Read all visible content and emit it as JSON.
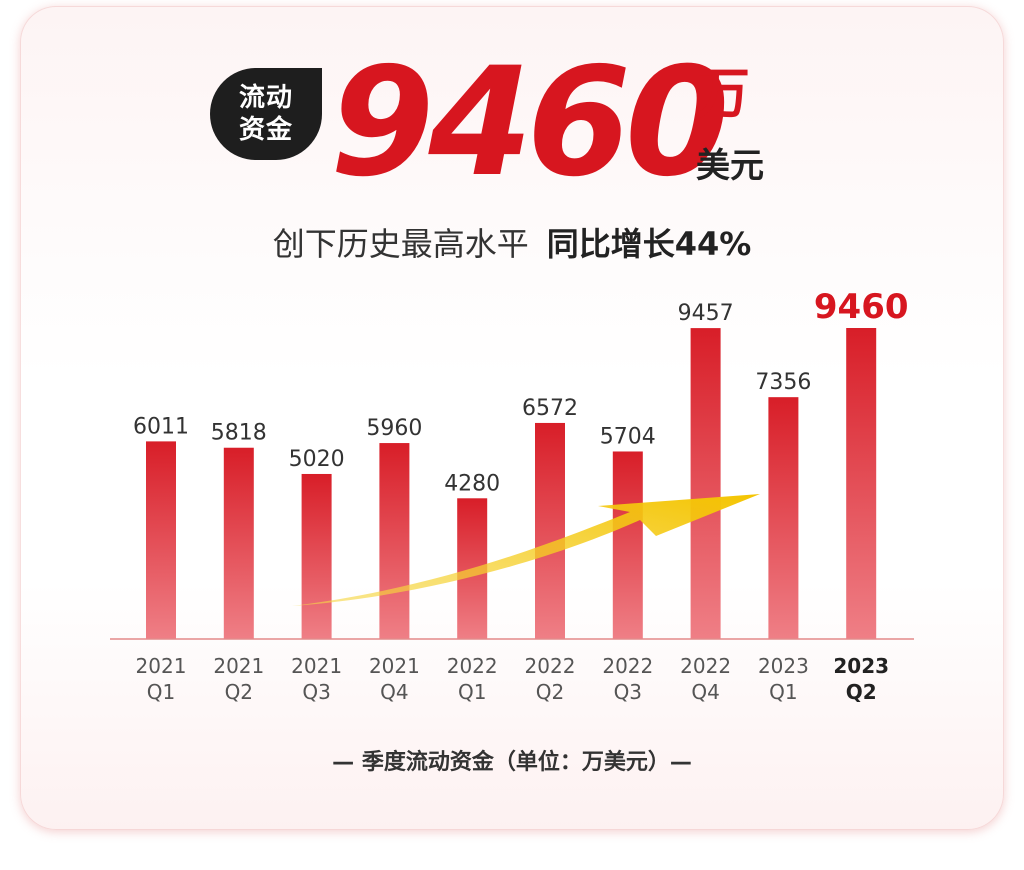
{
  "header": {
    "badge_line1": "流动",
    "badge_line2": "资金",
    "big_number": "9460",
    "unit_top": "万",
    "unit_bottom": "美元",
    "subtitle_normal": "创下历史最高水平",
    "subtitle_strong": "同比增长44%"
  },
  "footer": {
    "note": "— 季度流动资金（单位：万美元）—"
  },
  "colors": {
    "accent": "#d7161f",
    "bar_top": "#d81e28",
    "bar_bottom": "#ef7f86",
    "arrow": "#f4c400",
    "baseline": "#e38a8a"
  },
  "chart_data": {
    "type": "bar",
    "categories": [
      [
        "2021",
        "Q1"
      ],
      [
        "2021",
        "Q2"
      ],
      [
        "2021",
        "Q3"
      ],
      [
        "2021",
        "Q4"
      ],
      [
        "2022",
        "Q1"
      ],
      [
        "2022",
        "Q2"
      ],
      [
        "2022",
        "Q3"
      ],
      [
        "2022",
        "Q4"
      ],
      [
        "2023",
        "Q1"
      ],
      [
        "2023",
        "Q2"
      ]
    ],
    "values": [
      6011,
      5818,
      5020,
      5960,
      4280,
      6572,
      5704,
      9457,
      7356,
      9460
    ],
    "highlight_index": 9,
    "ylim": [
      0,
      11000
    ],
    "grid": false,
    "legend": "none",
    "annotation": "upward trend arrow"
  }
}
